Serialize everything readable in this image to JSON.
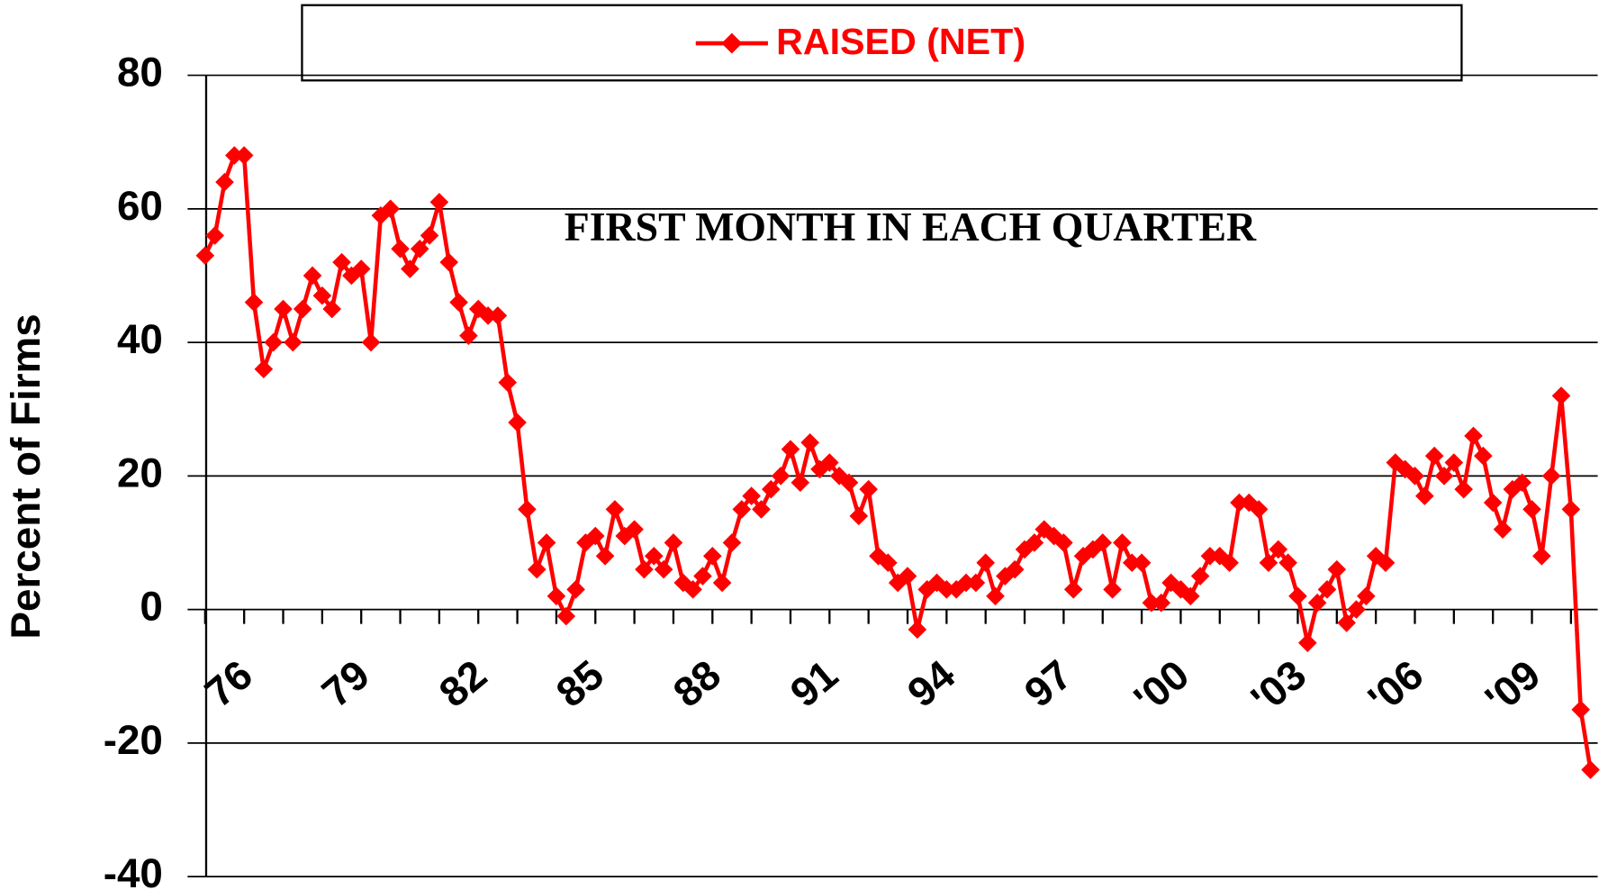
{
  "chart_data": {
    "type": "line",
    "ylabel": "Percent  of  Firms",
    "annotation": "FIRST MONTH IN EACH QUARTER",
    "categories": [
      null,
      null,
      null,
      null,
      "76",
      null,
      null,
      null,
      null,
      null,
      null,
      null,
      null,
      null,
      null,
      null,
      "79",
      null,
      null,
      null,
      null,
      null,
      null,
      null,
      null,
      null,
      null,
      null,
      "82",
      null,
      null,
      null,
      null,
      null,
      null,
      null,
      null,
      null,
      null,
      null,
      "85",
      null,
      null,
      null,
      null,
      null,
      null,
      null,
      null,
      null,
      null,
      null,
      "88",
      null,
      null,
      null,
      null,
      null,
      null,
      null,
      null,
      null,
      null,
      null,
      "91",
      null,
      null,
      null,
      null,
      null,
      null,
      null,
      null,
      null,
      null,
      null,
      "94",
      null,
      null,
      null,
      null,
      null,
      null,
      null,
      null,
      null,
      null,
      null,
      "97",
      null,
      null,
      null,
      null,
      null,
      null,
      null,
      null,
      null,
      null,
      null,
      "'00",
      null,
      null,
      null,
      null,
      null,
      null,
      null,
      null,
      null,
      null,
      null,
      "'03",
      null,
      null,
      null,
      null,
      null,
      null,
      null,
      null,
      null,
      null,
      null,
      "'06",
      null,
      null,
      null,
      null,
      null,
      null,
      null,
      null,
      null,
      null,
      null,
      "'09",
      null,
      null,
      null,
      null,
      null,
      null
    ],
    "series": [
      {
        "name": "RAISED (NET)",
        "color": "#ff0000",
        "values": [
          53,
          56,
          64,
          68,
          68,
          46,
          36,
          40,
          45,
          40,
          45,
          50,
          47,
          45,
          52,
          50,
          51,
          40,
          59,
          60,
          54,
          51,
          54,
          56,
          61,
          52,
          46,
          41,
          45,
          44,
          44,
          34,
          28,
          15,
          6,
          10,
          2,
          -1,
          3,
          10,
          11,
          8,
          15,
          11,
          12,
          6,
          8,
          6,
          10,
          4,
          3,
          5,
          8,
          4,
          10,
          15,
          17,
          15,
          18,
          20,
          24,
          19,
          25,
          21,
          22,
          20,
          19,
          14,
          18,
          8,
          7,
          4,
          5,
          -3,
          3,
          4,
          3,
          3,
          4,
          4,
          7,
          2,
          5,
          6,
          9,
          10,
          12,
          11,
          10,
          3,
          8,
          9,
          10,
          3,
          10,
          7,
          7,
          1,
          1,
          4,
          3,
          2,
          5,
          8,
          8,
          7,
          16,
          16,
          15,
          7,
          9,
          7,
          2,
          -5,
          1,
          3,
          6,
          -2,
          0,
          2,
          8,
          7,
          22,
          21,
          20,
          17,
          23,
          20,
          22,
          18,
          26,
          23,
          16,
          12,
          18,
          19,
          15,
          8,
          20,
          32,
          15,
          -15,
          -24
        ]
      }
    ],
    "ylim": [
      -40,
      80
    ],
    "yticks": [
      -40,
      -20,
      0,
      20,
      40,
      60,
      80
    ],
    "grid": true
  }
}
